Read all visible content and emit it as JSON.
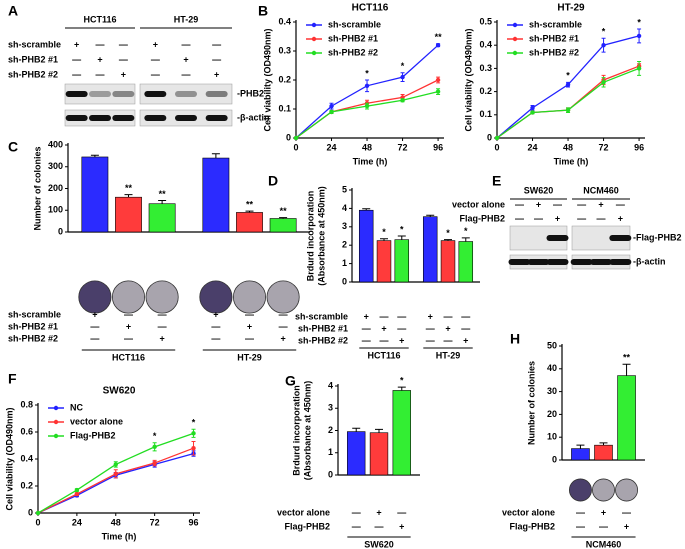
{
  "chart_data": [
    {
      "panel_label": "B",
      "type": "line",
      "title": "HCT116",
      "xlabel": "Time (h)",
      "ylabel": "Cell viability (OD490nm)",
      "x": [
        0,
        24,
        48,
        72,
        96
      ],
      "xlim": [
        0,
        100
      ],
      "xticks": [
        0,
        24,
        48,
        72,
        96
      ],
      "ylim": [
        0,
        0.4
      ],
      "yticks": [
        0,
        0.1,
        0.2,
        0.3,
        0.4
      ],
      "legend": "upper left",
      "series": [
        {
          "name": "sh-scramble",
          "color": "#2222ff",
          "values": [
            0,
            0.11,
            0.18,
            0.21,
            0.32
          ],
          "errors": [
            0,
            0.01,
            0.02,
            0.015,
            0.005
          ]
        },
        {
          "name": "sh-PHB2 #1",
          "color": "#ff3333",
          "values": [
            0,
            0.09,
            0.12,
            0.14,
            0.2
          ],
          "errors": [
            0,
            0.005,
            0.01,
            0.01,
            0.01
          ]
        },
        {
          "name": "sh-PHB2 #2",
          "color": "#22dd22",
          "values": [
            0,
            0.09,
            0.11,
            0.13,
            0.16
          ],
          "errors": [
            0,
            0.005,
            0.01,
            0.005,
            0.01
          ]
        }
      ],
      "significance": [
        null,
        null,
        "*",
        "*",
        "**"
      ]
    },
    {
      "type": "line",
      "title": "HT-29",
      "xlabel": "Time (h)",
      "ylabel": "Cell viability (OD490nm)",
      "x": [
        0,
        24,
        48,
        72,
        96
      ],
      "xlim": [
        0,
        100
      ],
      "xticks": [
        0,
        24,
        48,
        72,
        96
      ],
      "ylim": [
        0,
        0.5
      ],
      "yticks": [
        0,
        0.1,
        0.2,
        0.3,
        0.4,
        0.5
      ],
      "legend": "upper left",
      "series": [
        {
          "name": "sh-scramble",
          "color": "#2222ff",
          "values": [
            0,
            0.13,
            0.23,
            0.4,
            0.44
          ],
          "errors": [
            0,
            0.01,
            0.01,
            0.03,
            0.03
          ]
        },
        {
          "name": "sh-PHB2 #1",
          "color": "#ff3333",
          "values": [
            0,
            0.11,
            0.12,
            0.25,
            0.31
          ],
          "errors": [
            0,
            0.005,
            0.01,
            0.02,
            0.01
          ]
        },
        {
          "name": "sh-PHB2 #2",
          "color": "#22dd22",
          "values": [
            0,
            0.11,
            0.12,
            0.24,
            0.3
          ],
          "errors": [
            0,
            0.005,
            0.01,
            0.02,
            0.03
          ]
        }
      ],
      "significance": [
        null,
        null,
        "*",
        "*",
        "*"
      ]
    },
    {
      "panel_label": "C",
      "type": "bar",
      "ylabel": "Number of colonies",
      "ylim": [
        0,
        400
      ],
      "yticks": [
        0,
        100,
        200,
        300,
        400
      ],
      "values": [
        345,
        160,
        130,
        340,
        90,
        62
      ],
      "errors": [
        8,
        12,
        15,
        20,
        6,
        4
      ],
      "colors": [
        "#2b2bff",
        "#ff3b3b",
        "#33ee33",
        "#2b2bff",
        "#ff3b3b",
        "#33ee33"
      ],
      "significance": [
        null,
        "**",
        "**",
        null,
        "**",
        "**"
      ],
      "conditions": [
        {
          "label": "sh-scramble",
          "marks": [
            "+",
            "—",
            "—",
            "+",
            "—",
            "—"
          ]
        },
        {
          "label": "sh-PHB2 #1",
          "marks": [
            "—",
            "+",
            "—",
            "—",
            "+",
            "—"
          ]
        },
        {
          "label": "sh-PHB2 #2",
          "marks": [
            "—",
            "—",
            "+",
            "—",
            "—",
            "+"
          ]
        }
      ],
      "groups": [
        "HCT116",
        "HT-29"
      ]
    },
    {
      "panel_label": "D",
      "type": "bar",
      "ylabel": [
        "Brdurd incorporation",
        "(Absorbance at 450nm)"
      ],
      "ylim": [
        0,
        5
      ],
      "yticks": [
        0,
        1,
        2,
        3,
        4,
        5
      ],
      "values": [
        3.9,
        2.25,
        2.3,
        3.55,
        2.25,
        2.2
      ],
      "errors": [
        0.08,
        0.1,
        0.2,
        0.08,
        0.05,
        0.2
      ],
      "colors": [
        "#2b2bff",
        "#ff3b3b",
        "#33ee33",
        "#2b2bff",
        "#ff3b3b",
        "#33ee33"
      ],
      "significance": [
        null,
        "*",
        "*",
        null,
        "*",
        "*"
      ],
      "conditions": [
        {
          "label": "sh-scramble",
          "marks": [
            "+",
            "—",
            "—",
            "+",
            "—",
            "—"
          ]
        },
        {
          "label": "sh-PHB2 #1",
          "marks": [
            "—",
            "+",
            "—",
            "—",
            "+",
            "—"
          ]
        },
        {
          "label": "sh-PHB2 #2",
          "marks": [
            "—",
            "—",
            "+",
            "—",
            "—",
            "+"
          ]
        }
      ],
      "groups": [
        "HCT116",
        "HT-29"
      ]
    },
    {
      "panel_label": "F",
      "type": "line",
      "title": "SW620",
      "xlabel": "Time (h)",
      "ylabel": "Cell viability (OD490nm)",
      "x": [
        0,
        24,
        48,
        72,
        96
      ],
      "xlim": [
        0,
        100
      ],
      "xticks": [
        0,
        24,
        48,
        72,
        96
      ],
      "ylim": [
        0,
        0.8
      ],
      "yticks": [
        0,
        0.2,
        0.4,
        0.6,
        0.8
      ],
      "legend": "upper left",
      "series": [
        {
          "name": "NC",
          "color": "#2222ff",
          "values": [
            0,
            0.13,
            0.28,
            0.36,
            0.44
          ],
          "errors": [
            0,
            0.01,
            0.02,
            0.02,
            0.02
          ]
        },
        {
          "name": "vector alone",
          "color": "#ff3333",
          "values": [
            0,
            0.14,
            0.29,
            0.37,
            0.48
          ],
          "errors": [
            0,
            0.01,
            0.03,
            0.02,
            0.05
          ]
        },
        {
          "name": "Flag-PHB2",
          "color": "#22dd22",
          "values": [
            0,
            0.17,
            0.36,
            0.49,
            0.59
          ],
          "errors": [
            0,
            0.01,
            0.02,
            0.03,
            0.03
          ]
        }
      ],
      "significance": [
        null,
        null,
        null,
        "*",
        "*"
      ]
    },
    {
      "panel_label": "G",
      "type": "bar",
      "ylabel": [
        "Brdurd incorporation",
        "(Absorbance at 450nm)"
      ],
      "ylim": [
        0,
        4
      ],
      "yticks": [
        0,
        1,
        2,
        3,
        4
      ],
      "values": [
        1.95,
        1.9,
        3.8
      ],
      "errors": [
        0.15,
        0.15,
        0.15
      ],
      "colors": [
        "#2b2bff",
        "#ff3b3b",
        "#33ee33"
      ],
      "significance": [
        null,
        null,
        "*"
      ],
      "conditions": [
        {
          "label": "vector alone",
          "marks": [
            "—",
            "+",
            "—"
          ]
        },
        {
          "label": "Flag-PHB2",
          "marks": [
            "—",
            "—",
            "+"
          ]
        }
      ],
      "groups": [
        "SW620"
      ]
    },
    {
      "panel_label": "H",
      "type": "bar",
      "ylabel": "Number of colonies",
      "ylim": [
        0,
        50
      ],
      "yticks": [
        0,
        10,
        20,
        30,
        40,
        50
      ],
      "values": [
        5,
        6.5,
        37
      ],
      "errors": [
        1.5,
        1,
        5
      ],
      "colors": [
        "#2b2bff",
        "#ff3b3b",
        "#33ee33"
      ],
      "significance": [
        null,
        null,
        "**"
      ],
      "conditions": [
        {
          "label": "vector alone",
          "marks": [
            "—",
            "+",
            "—"
          ]
        },
        {
          "label": "Flag-PHB2",
          "marks": [
            "—",
            "—",
            "+"
          ]
        }
      ],
      "groups": [
        "NCM460"
      ]
    }
  ],
  "blots": [
    {
      "panel_label": "A",
      "cell_lines": [
        "HCT116",
        "HT-29"
      ],
      "conditions": [
        {
          "label": "sh-scramble",
          "marks": [
            "+",
            "—",
            "—",
            "+",
            "—",
            "—"
          ]
        },
        {
          "label": "sh-PHB2 #1",
          "marks": [
            "—",
            "+",
            "—",
            "—",
            "+",
            "—"
          ]
        },
        {
          "label": "sh-PHB2 #2",
          "marks": [
            "—",
            "—",
            "+",
            "—",
            "—",
            "+"
          ]
        }
      ],
      "bands": [
        "-PHB2",
        "-β-actin"
      ]
    },
    {
      "panel_label": "E",
      "cell_lines": [
        "SW620",
        "NCM460"
      ],
      "conditions": [
        {
          "label": "vector alone",
          "marks": [
            "—",
            "+",
            "—",
            "—",
            "+",
            "—"
          ]
        },
        {
          "label": "Flag-PHB2",
          "marks": [
            "—",
            "—",
            "+",
            "—",
            "—",
            "+"
          ]
        }
      ],
      "bands": [
        "-Flag-PHB2",
        "-β-actin"
      ]
    }
  ]
}
